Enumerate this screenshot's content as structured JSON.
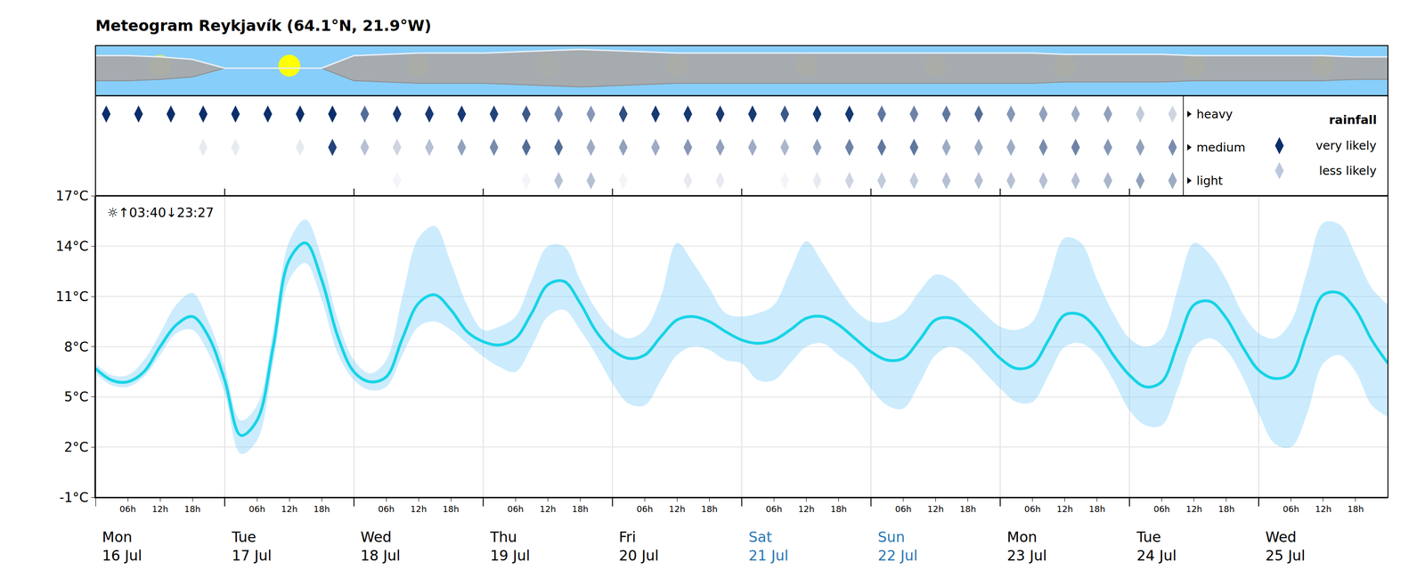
{
  "chart_data": {
    "type": "line",
    "title": "Meteogram Reykjavík (64.1°N, 21.9°W)",
    "annotation": "☼↑03:40↓23:27",
    "x": [
      0,
      3,
      6,
      9,
      12,
      15,
      18,
      21,
      24,
      27,
      30,
      33,
      36,
      39,
      42,
      45,
      48,
      51,
      54,
      57,
      60,
      63,
      66,
      69,
      72,
      75,
      78,
      81,
      84,
      87,
      90,
      93,
      96,
      99,
      102,
      105,
      108,
      111,
      114,
      117,
      120,
      123,
      126,
      129,
      132,
      135,
      138,
      141,
      144,
      147,
      150,
      153,
      156,
      159,
      162,
      165,
      168,
      171,
      174,
      177,
      180,
      183,
      186,
      189,
      192,
      195,
      198,
      201,
      204,
      207,
      210,
      213,
      216,
      219,
      222,
      225,
      228,
      231,
      234,
      237,
      240
    ],
    "series": [
      {
        "color": "#17d4e6",
        "values": [
          6.7,
          6.0,
          5.9,
          6.5,
          8.0,
          9.3,
          9.8,
          8.6,
          6.0,
          2.7,
          3.6,
          8.0,
          13.2,
          14.2,
          12.0,
          8.6,
          6.5,
          5.9,
          6.2,
          8.5,
          10.6,
          11.1,
          10.2,
          8.9,
          8.3,
          8.1,
          8.5,
          10.0,
          11.7,
          11.9,
          10.6,
          8.9,
          7.8,
          7.3,
          7.5,
          8.6,
          9.6,
          9.8,
          9.5,
          8.9,
          8.4,
          8.2,
          8.4,
          9.0,
          9.7,
          9.8,
          9.3,
          8.5,
          7.7,
          7.2,
          7.3,
          8.4,
          9.6,
          9.7,
          9.2,
          8.3,
          7.3,
          6.7,
          6.9,
          8.4,
          9.9,
          9.9,
          9.0,
          7.5,
          6.3,
          5.6,
          5.9,
          8.2,
          10.5,
          10.7,
          9.7,
          8.0,
          6.6,
          6.1,
          6.4,
          8.8,
          11.1,
          11.2,
          10.2,
          8.4,
          7.0
        ],
        "low": [
          6.4,
          5.7,
          5.6,
          6.2,
          7.5,
          8.8,
          9.0,
          7.6,
          5.2,
          1.6,
          2.4,
          7.0,
          12.0,
          13.0,
          10.8,
          7.6,
          6.0,
          5.4,
          5.6,
          7.5,
          9.2,
          9.5,
          9.0,
          8.2,
          7.4,
          6.8,
          6.5,
          8.0,
          9.8,
          10.2,
          9.0,
          7.5,
          5.8,
          4.6,
          4.5,
          6.0,
          7.5,
          8.0,
          7.8,
          7.2,
          7.0,
          6.0,
          6.0,
          7.0,
          8.0,
          8.2,
          7.5,
          6.8,
          5.5,
          4.5,
          4.3,
          5.8,
          7.5,
          8.0,
          7.5,
          6.5,
          5.5,
          4.7,
          4.7,
          6.3,
          8.0,
          8.2,
          7.5,
          6.0,
          4.2,
          3.3,
          3.3,
          5.5,
          8.0,
          8.5,
          7.8,
          6.2,
          4.0,
          2.2,
          2.0,
          4.0,
          7.0,
          7.5,
          6.5,
          4.5,
          3.8
        ],
        "high": [
          7.0,
          6.3,
          6.3,
          7.2,
          8.8,
          10.5,
          11.2,
          9.5,
          6.8,
          3.6,
          4.5,
          9.0,
          14.3,
          15.6,
          13.3,
          9.6,
          7.2,
          6.4,
          7.2,
          11.0,
          14.5,
          15.2,
          13.0,
          10.5,
          9.0,
          9.2,
          9.8,
          12.0,
          14.0,
          14.0,
          12.0,
          10.2,
          9.0,
          8.5,
          9.0,
          11.0,
          14.2,
          13.0,
          11.5,
          10.0,
          9.8,
          10.0,
          10.5,
          12.5,
          14.3,
          13.0,
          11.5,
          10.2,
          9.5,
          9.5,
          10.0,
          11.3,
          12.3,
          12.0,
          11.0,
          10.0,
          9.2,
          9.0,
          9.5,
          12.0,
          14.5,
          14.2,
          12.0,
          10.0,
          8.5,
          8.0,
          8.5,
          11.5,
          14.2,
          13.5,
          12.0,
          10.0,
          8.8,
          8.5,
          9.5,
          12.5,
          15.4,
          15.3,
          13.5,
          11.5,
          10.5
        ]
      }
    ],
    "xlim": [
      0,
      240
    ],
    "xticks": [
      {
        "value": 6,
        "label": "06h"
      },
      {
        "value": 12,
        "label": "12h"
      },
      {
        "value": 18,
        "label": "18h"
      },
      {
        "value": 30,
        "label": "06h"
      },
      {
        "value": 36,
        "label": "12h"
      },
      {
        "value": 42,
        "label": "18h"
      },
      {
        "value": 54,
        "label": "06h"
      },
      {
        "value": 60,
        "label": "12h"
      },
      {
        "value": 66,
        "label": "18h"
      },
      {
        "value": 78,
        "label": "06h"
      },
      {
        "value": 84,
        "label": "12h"
      },
      {
        "value": 90,
        "label": "18h"
      },
      {
        "value": 102,
        "label": "06h"
      },
      {
        "value": 108,
        "label": "12h"
      },
      {
        "value": 114,
        "label": "18h"
      },
      {
        "value": 126,
        "label": "06h"
      },
      {
        "value": 132,
        "label": "12h"
      },
      {
        "value": 138,
        "label": "18h"
      },
      {
        "value": 150,
        "label": "06h"
      },
      {
        "value": 156,
        "label": "12h"
      },
      {
        "value": 162,
        "label": "18h"
      },
      {
        "value": 174,
        "label": "06h"
      },
      {
        "value": 180,
        "label": "12h"
      },
      {
        "value": 186,
        "label": "18h"
      },
      {
        "value": 198,
        "label": "06h"
      },
      {
        "value": 204,
        "label": "12h"
      },
      {
        "value": 210,
        "label": "18h"
      },
      {
        "value": 222,
        "label": "06h"
      },
      {
        "value": 228,
        "label": "12h"
      },
      {
        "value": 234,
        "label": "18h"
      }
    ],
    "ylim": [
      -1,
      17
    ],
    "yticks": [
      {
        "value": -1,
        "label": "-1°C"
      },
      {
        "value": 2,
        "label": "2°C"
      },
      {
        "value": 5,
        "label": "5°C"
      },
      {
        "value": 8,
        "label": "8°C"
      },
      {
        "value": 11,
        "label": "11°C"
      },
      {
        "value": 14,
        "label": "14°C"
      },
      {
        "value": 17,
        "label": "17°C"
      }
    ],
    "grid": true,
    "days": [
      {
        "x": 0,
        "weekday": "Mon",
        "date": "16 Jul",
        "color": "#000000"
      },
      {
        "x": 24,
        "weekday": "Tue",
        "date": "17 Jul",
        "color": "#000000"
      },
      {
        "x": 48,
        "weekday": "Wed",
        "date": "18 Jul",
        "color": "#000000"
      },
      {
        "x": 72,
        "weekday": "Thu",
        "date": "19 Jul",
        "color": "#000000"
      },
      {
        "x": 96,
        "weekday": "Fri",
        "date": "20 Jul",
        "color": "#000000"
      },
      {
        "x": 120,
        "weekday": "Sat",
        "date": "21 Jul",
        "color": "#2a78b5"
      },
      {
        "x": 144,
        "weekday": "Sun",
        "date": "22 Jul",
        "color": "#2a78b5"
      },
      {
        "x": 168,
        "weekday": "Mon",
        "date": "23 Jul",
        "color": "#000000"
      },
      {
        "x": 192,
        "weekday": "Tue",
        "date": "24 Jul",
        "color": "#000000"
      },
      {
        "x": 216,
        "weekday": "Wed",
        "date": "25 Jul",
        "color": "#000000"
      }
    ],
    "clouds": {
      "x": [
        0,
        6,
        12,
        18,
        24,
        30,
        36,
        42,
        48,
        54,
        60,
        66,
        72,
        78,
        84,
        90,
        96,
        102,
        108,
        114,
        120,
        126,
        132,
        138,
        144,
        150,
        156,
        162,
        168,
        174,
        180,
        186,
        192,
        198,
        204,
        210,
        216,
        222,
        228,
        234,
        240
      ],
      "cover": [
        0.5,
        0.5,
        0.45,
        0.35,
        0,
        0,
        0,
        0,
        0.5,
        0.55,
        0.6,
        0.6,
        0.6,
        0.65,
        0.7,
        0.75,
        0.7,
        0.65,
        0.6,
        0.6,
        0.6,
        0.6,
        0.6,
        0.6,
        0.6,
        0.6,
        0.6,
        0.6,
        0.6,
        0.6,
        0.55,
        0.55,
        0.55,
        0.55,
        0.5,
        0.5,
        0.5,
        0.5,
        0.5,
        0.45,
        0.45
      ]
    },
    "rainfall": {
      "title": "rainfall",
      "x": [
        2,
        8,
        14,
        20,
        26,
        32,
        38,
        44,
        50,
        56,
        62,
        68,
        74,
        80,
        86,
        92,
        98,
        104,
        110,
        116,
        122,
        128,
        134,
        140,
        146,
        152,
        158,
        164,
        170,
        176,
        182,
        188,
        194,
        200
      ],
      "rows": [
        {
          "label": "heavy",
          "probability": [
            1,
            1,
            1,
            1,
            1,
            1,
            1,
            1,
            0.7,
            0.95,
            0.95,
            0.95,
            0.9,
            0.8,
            0.6,
            0.5,
            0.85,
            0.95,
            0.95,
            0.95,
            0.95,
            0.8,
            0.95,
            0.95,
            0.65,
            0.6,
            0.65,
            0.7,
            0.5,
            0.45,
            0.4,
            0.45,
            0.25,
            0.2
          ]
        },
        {
          "label": "medium",
          "probability": [
            0,
            0,
            0,
            0.1,
            0.1,
            0,
            0.1,
            0.9,
            0.3,
            0.2,
            0.3,
            0.45,
            0.55,
            0.7,
            0.7,
            0.4,
            0.45,
            0.4,
            0.5,
            0.45,
            0.4,
            0.35,
            0.45,
            0.6,
            0.65,
            0.65,
            0.4,
            0.4,
            0.4,
            0.55,
            0.6,
            0.5,
            0.45,
            0.55
          ]
        },
        {
          "label": "light",
          "probability": [
            0,
            0,
            0,
            0,
            0,
            0,
            0,
            0,
            0,
            0.05,
            0,
            0,
            0,
            0.05,
            0.3,
            0.3,
            0.05,
            0,
            0.1,
            0.1,
            0,
            0.05,
            0.1,
            0.2,
            0.25,
            0.25,
            0.3,
            0.3,
            0.3,
            0.3,
            0.3,
            0.35,
            0.45,
            0.4
          ]
        }
      ],
      "key": [
        {
          "label": "very likely",
          "color": "#0b2e6b"
        },
        {
          "label": "less likely",
          "color": "#bcc8de"
        }
      ]
    }
  }
}
